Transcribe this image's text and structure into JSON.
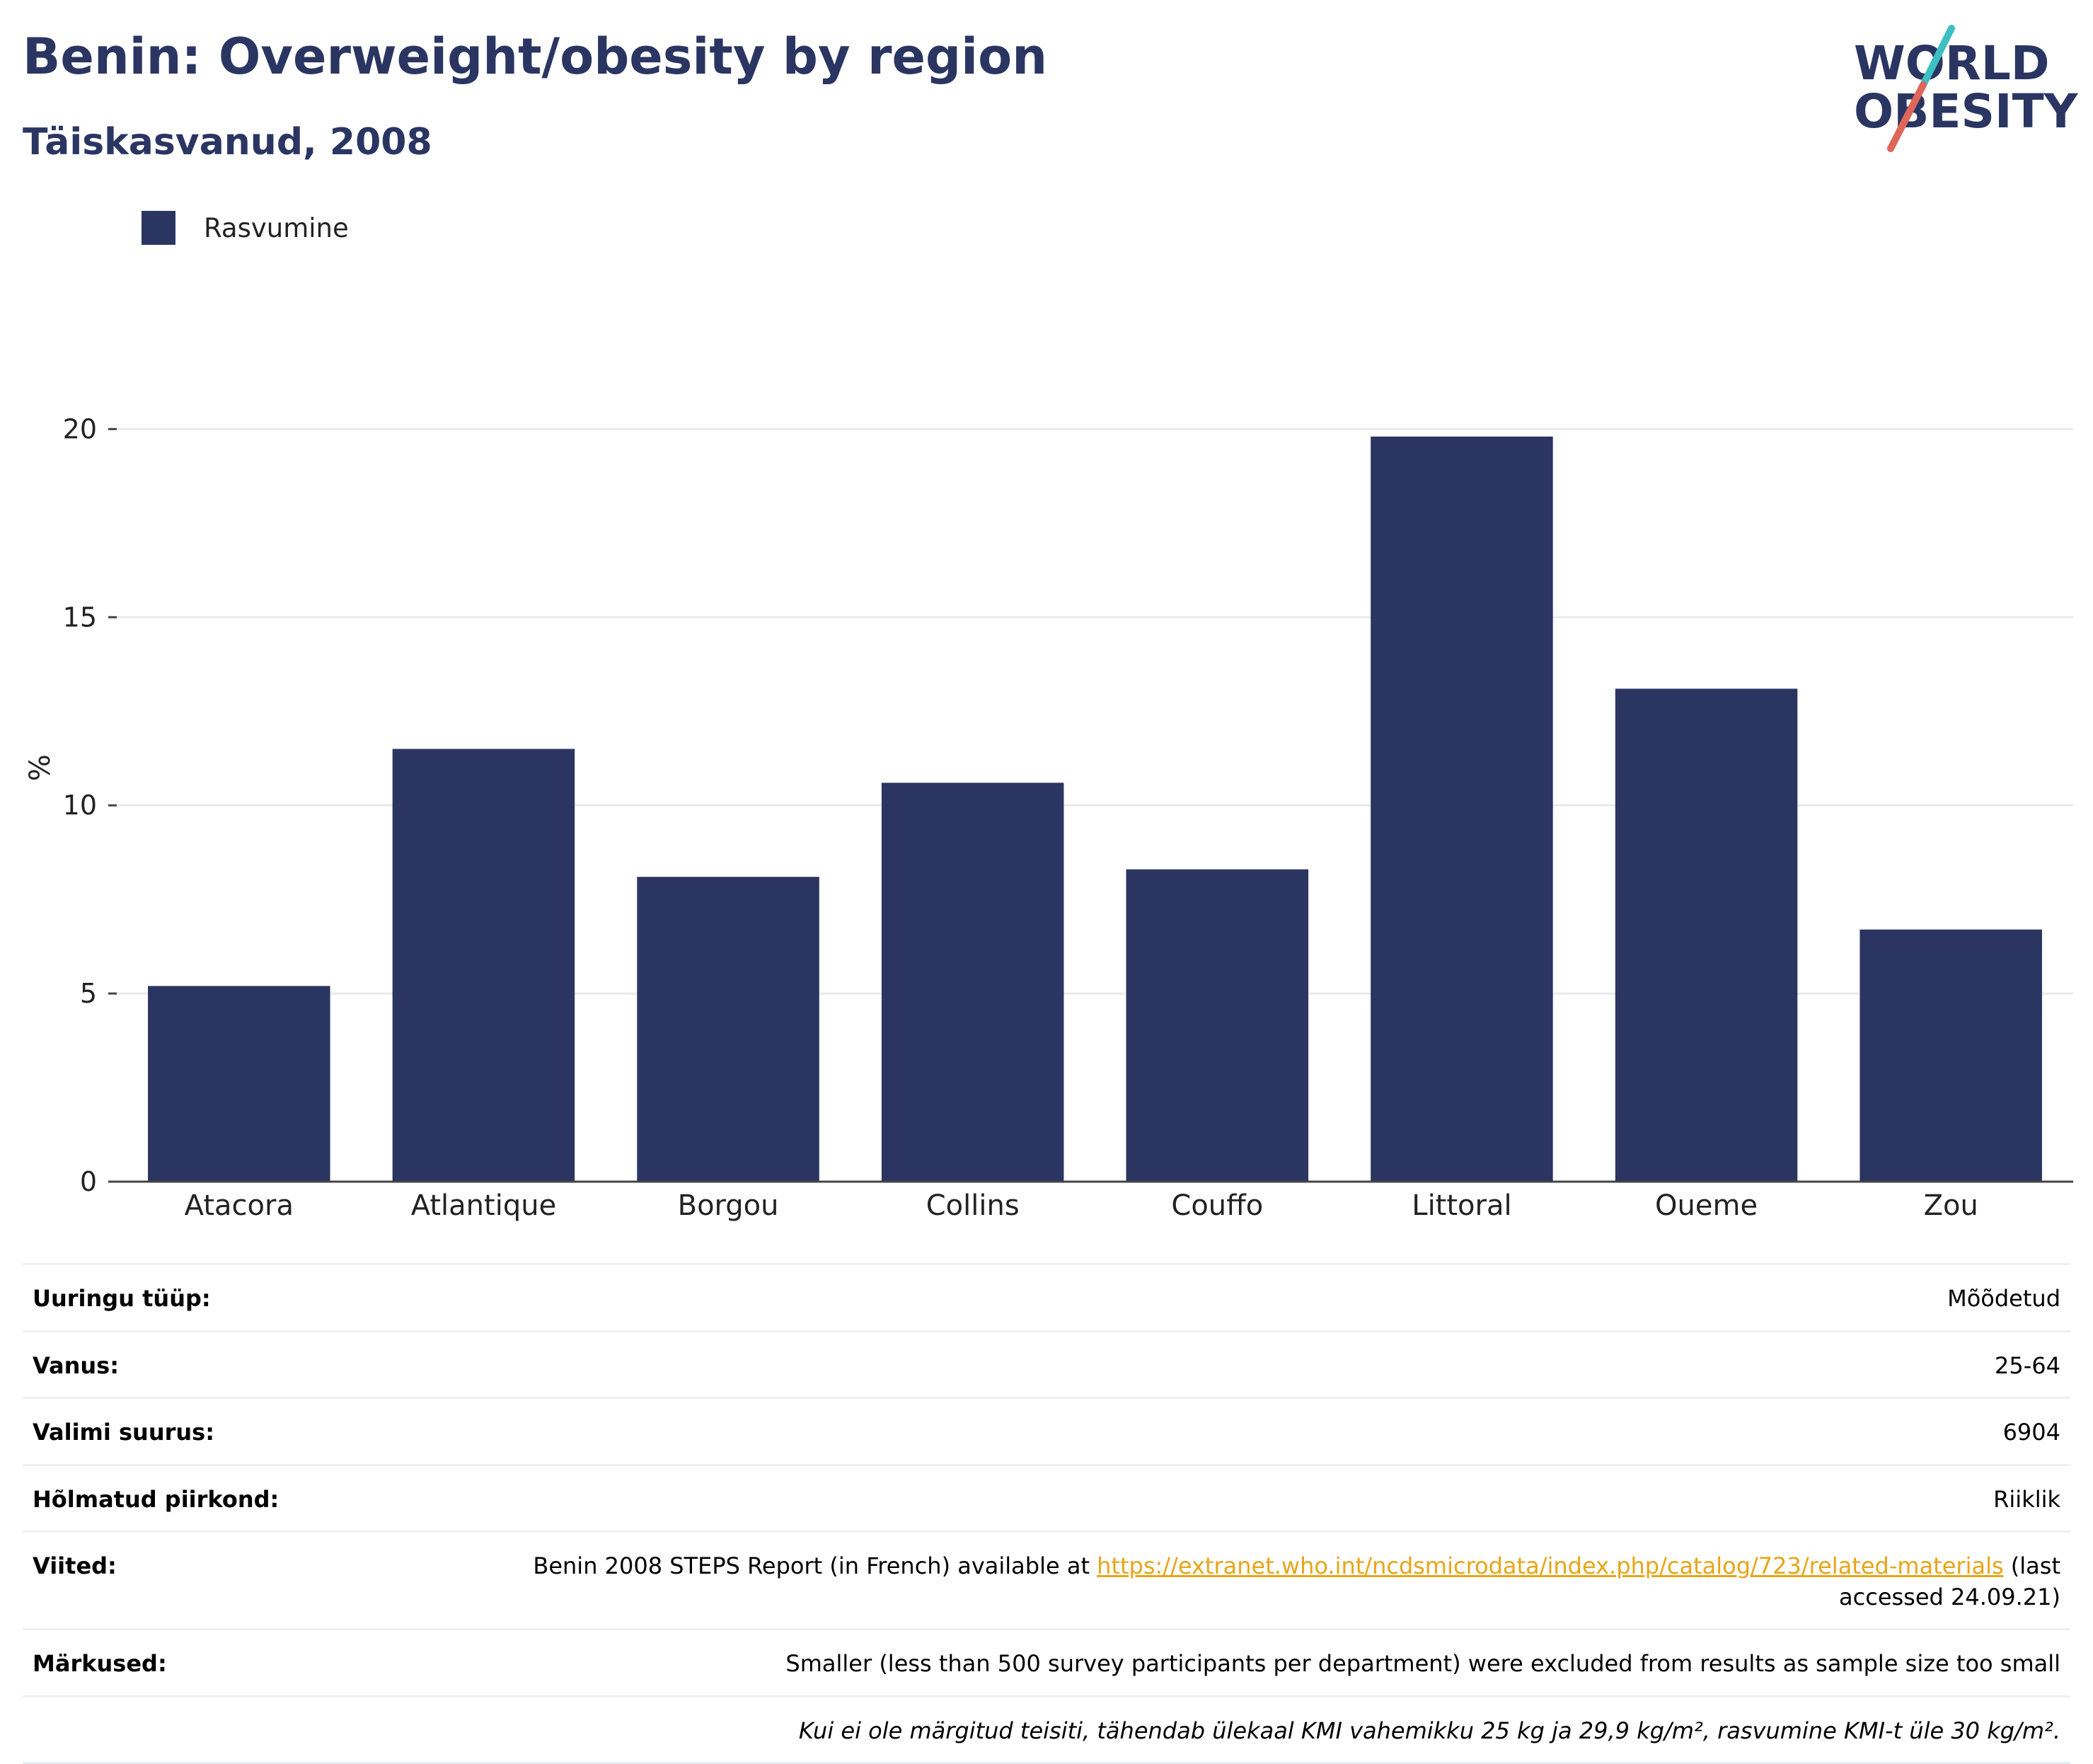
{
  "header": {
    "title": "Benin: Overweight/obesity by region",
    "subtitle": "Täiskasvanud, 2008"
  },
  "logo": {
    "line1": "WORLD",
    "line2": "OBESITY",
    "colors": {
      "text": "#2a3562",
      "slash_teal": "#3ebfc4",
      "slash_red": "#e0665a"
    }
  },
  "colors": {
    "bar": "#2a3562",
    "grid": "#e8ebee",
    "axis": "#444444",
    "tick_text": "#222222"
  },
  "chart_data": {
    "type": "bar",
    "categories": [
      "Atacora",
      "Atlantique",
      "Borgou",
      "Collins",
      "Couffo",
      "Littoral",
      "Oueme",
      "Zou"
    ],
    "series": [
      {
        "name": "Rasvumine",
        "values": [
          5.2,
          11.5,
          8.1,
          10.6,
          8.3,
          19.8,
          13.1,
          6.7
        ]
      }
    ],
    "ylabel": "%",
    "xlabel": "",
    "ylim": [
      0,
      22
    ],
    "yticks": [
      0,
      5,
      10,
      15,
      20
    ],
    "grid": true,
    "legend": "top-left"
  },
  "info": {
    "survey_type": {
      "label": "Uuringu tüüp:",
      "value": "Mõõdetud"
    },
    "age": {
      "label": "Vanus:",
      "value": "25-64"
    },
    "sample_size": {
      "label": "Valimi suurus:",
      "value": "6904"
    },
    "area": {
      "label": "Hõlmatud piirkond:",
      "value": "Riiklik"
    },
    "references": {
      "label": "Viited:",
      "text_before": "Benin 2008 STEPS Report (in French) available at ",
      "link": "https://extranet.who.int/ncdsmicrodata/index.php/catalog/723/related-materials",
      "text_after": " (last accessed 24.09.21)"
    },
    "notes": {
      "label": "Märkused:",
      "value": "Smaller (less than 500 survey participants per department) were excluded from results as sample size too small"
    },
    "footnote": "Kui ei ole märgitud teisiti, tähendab ülekaal KMI vahemikku 25 kg ja 29,9 kg/m², rasvumine KMI-t üle 30 kg/m²."
  }
}
